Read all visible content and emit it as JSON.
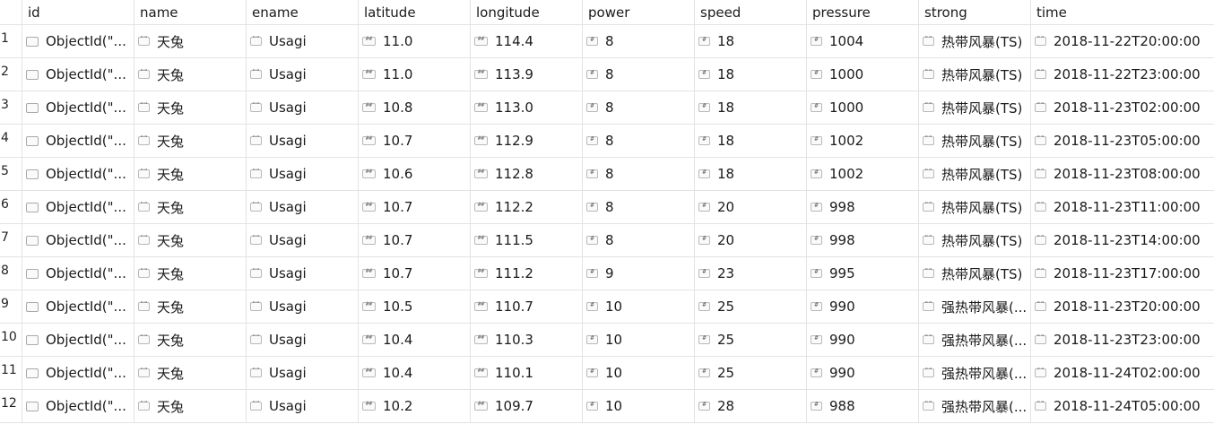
{
  "columns": [
    "id",
    "name",
    "ename",
    "latitude",
    "longitude",
    "power",
    "speed",
    "pressure",
    "strong",
    "time"
  ],
  "rows": [
    {
      "num": "1",
      "id": "ObjectId(\"...",
      "name": "天兔",
      "ename": "Usagi",
      "latitude": "11.0",
      "longitude": "114.4",
      "power": "8",
      "speed": "18",
      "pressure": "1004",
      "strong": "热带风暴(TS)",
      "time": "2018-11-22T20:00:00"
    },
    {
      "num": "2",
      "id": "ObjectId(\"...",
      "name": "天兔",
      "ename": "Usagi",
      "latitude": "11.0",
      "longitude": "113.9",
      "power": "8",
      "speed": "18",
      "pressure": "1000",
      "strong": "热带风暴(TS)",
      "time": "2018-11-22T23:00:00"
    },
    {
      "num": "3",
      "id": "ObjectId(\"...",
      "name": "天兔",
      "ename": "Usagi",
      "latitude": "10.8",
      "longitude": "113.0",
      "power": "8",
      "speed": "18",
      "pressure": "1000",
      "strong": "热带风暴(TS)",
      "time": "2018-11-23T02:00:00"
    },
    {
      "num": "4",
      "id": "ObjectId(\"...",
      "name": "天兔",
      "ename": "Usagi",
      "latitude": "10.7",
      "longitude": "112.9",
      "power": "8",
      "speed": "18",
      "pressure": "1002",
      "strong": "热带风暴(TS)",
      "time": "2018-11-23T05:00:00"
    },
    {
      "num": "5",
      "id": "ObjectId(\"...",
      "name": "天兔",
      "ename": "Usagi",
      "latitude": "10.6",
      "longitude": "112.8",
      "power": "8",
      "speed": "18",
      "pressure": "1002",
      "strong": "热带风暴(TS)",
      "time": "2018-11-23T08:00:00"
    },
    {
      "num": "6",
      "id": "ObjectId(\"...",
      "name": "天兔",
      "ename": "Usagi",
      "latitude": "10.7",
      "longitude": "112.2",
      "power": "8",
      "speed": "20",
      "pressure": "998",
      "strong": "热带风暴(TS)",
      "time": "2018-11-23T11:00:00"
    },
    {
      "num": "7",
      "id": "ObjectId(\"...",
      "name": "天兔",
      "ename": "Usagi",
      "latitude": "10.7",
      "longitude": "111.5",
      "power": "8",
      "speed": "20",
      "pressure": "998",
      "strong": "热带风暴(TS)",
      "time": "2018-11-23T14:00:00"
    },
    {
      "num": "8",
      "id": "ObjectId(\"...",
      "name": "天兔",
      "ename": "Usagi",
      "latitude": "10.7",
      "longitude": "111.2",
      "power": "9",
      "speed": "23",
      "pressure": "995",
      "strong": "热带风暴(TS)",
      "time": "2018-11-23T17:00:00"
    },
    {
      "num": "9",
      "id": "ObjectId(\"...",
      "name": "天兔",
      "ename": "Usagi",
      "latitude": "10.5",
      "longitude": "110.7",
      "power": "10",
      "speed": "25",
      "pressure": "990",
      "strong": "强热带风暴(...",
      "time": "2018-11-23T20:00:00"
    },
    {
      "num": "10",
      "id": "ObjectId(\"...",
      "name": "天兔",
      "ename": "Usagi",
      "latitude": "10.4",
      "longitude": "110.3",
      "power": "10",
      "speed": "25",
      "pressure": "990",
      "strong": "强热带风暴(...",
      "time": "2018-11-23T23:00:00"
    },
    {
      "num": "11",
      "id": "ObjectId(\"...",
      "name": "天兔",
      "ename": "Usagi",
      "latitude": "10.4",
      "longitude": "110.1",
      "power": "10",
      "speed": "25",
      "pressure": "990",
      "strong": "强热带风暴(...",
      "time": "2018-11-24T02:00:00"
    },
    {
      "num": "12",
      "id": "ObjectId(\"...",
      "name": "天兔",
      "ename": "Usagi",
      "latitude": "10.2",
      "longitude": "109.7",
      "power": "10",
      "speed": "28",
      "pressure": "988",
      "strong": "强热带风暴(...",
      "time": "2018-11-24T05:00:00"
    }
  ],
  "icons": {
    "id": "objectid-icon",
    "name": "string-icon",
    "ename": "string-icon",
    "latitude": "double-icon",
    "longitude": "double-icon",
    "power": "int-icon",
    "speed": "int-icon",
    "pressure": "int-icon",
    "strong": "string-icon",
    "time": "string-icon"
  },
  "colors": {
    "grid_line": "#e3e3e3",
    "text": "#1a1a1a",
    "background": "#ffffff"
  }
}
